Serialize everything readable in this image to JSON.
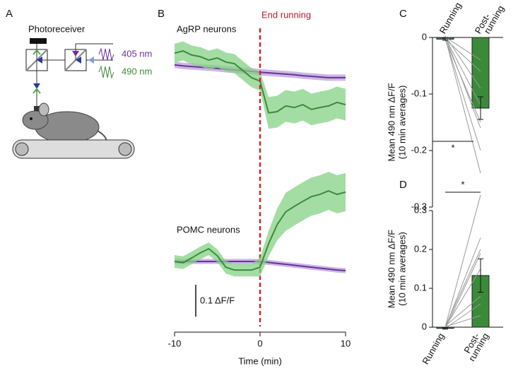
{
  "diagram": {
    "panel": "A",
    "title": "Photoreceiver",
    "wavelengths": [
      "405 nm",
      "490 nm"
    ]
  },
  "chart_data": [
    {
      "type": "line",
      "panel": "B",
      "title": "AgRP neurons",
      "annotation": {
        "x": 0,
        "text": "End running"
      },
      "x": [
        -10,
        -9,
        -8,
        -7,
        -6,
        -5,
        -4,
        -3,
        -2,
        -1,
        0,
        1,
        2,
        3,
        4,
        5,
        6,
        7,
        8,
        9,
        10
      ],
      "xlim": [
        -10,
        10
      ],
      "ylim": [
        -0.25,
        0.1
      ],
      "series": [
        {
          "name": "405 nm",
          "color": "#6b2fa0",
          "band_color": "#b9a0d8",
          "values": [
            0.007,
            0.004,
            0.002,
            0,
            -0.002,
            -0.004,
            -0.007,
            -0.009,
            -0.011,
            -0.013,
            -0.016,
            -0.018,
            -0.02,
            -0.022,
            -0.024,
            -0.027,
            -0.029,
            -0.031,
            -0.033,
            -0.033,
            -0.033
          ],
          "errors": [
            0.01,
            0.01,
            0.01,
            0.01,
            0.01,
            0.01,
            0.01,
            0.01,
            0.01,
            0.01,
            0.01,
            0.01,
            0.01,
            0.01,
            0.01,
            0.01,
            0.01,
            0.01,
            0.01,
            0.01,
            0.01
          ]
        },
        {
          "name": "490 nm",
          "color": "#3b8b3b",
          "band_color": "#86d286",
          "values": [
            0.044,
            0.051,
            0.038,
            0.033,
            0.022,
            0.029,
            0.016,
            0.011,
            -0.011,
            -0.033,
            -0.044,
            -0.144,
            -0.14,
            -0.122,
            -0.127,
            -0.118,
            -0.133,
            -0.127,
            -0.122,
            -0.111,
            -0.118
          ],
          "errors": [
            0.03,
            0.03,
            0.03,
            0.03,
            0.03,
            0.03,
            0.03,
            0.03,
            0.03,
            0.03,
            0.03,
            0.05,
            0.05,
            0.05,
            0.05,
            0.05,
            0.05,
            0.05,
            0.05,
            0.05,
            0.05
          ]
        }
      ]
    },
    {
      "type": "line",
      "title": "POMC neurons",
      "xlabel": "Time (min)",
      "scale_bar": {
        "value": 0.1,
        "label": "0.1 ΔF/F"
      },
      "x": [
        -10,
        -9,
        -8,
        -7,
        -6,
        -5,
        -4,
        -3,
        -2,
        -1,
        0,
        1,
        2,
        3,
        4,
        5,
        6,
        7,
        8,
        9,
        10
      ],
      "xlim": [
        -10,
        10
      ],
      "xticks": [
        -10,
        0,
        10
      ],
      "ylim": [
        -0.18,
        0.29
      ],
      "series": [
        {
          "name": "405 nm",
          "color": "#6b2fa0",
          "band_color": "#b9a0d8",
          "values": [
            0,
            0,
            0,
            0,
            0,
            0,
            0,
            0,
            0,
            0,
            0,
            -0.003,
            -0.006,
            -0.009,
            -0.012,
            -0.015,
            -0.018,
            -0.021,
            -0.024,
            -0.027,
            -0.029
          ],
          "errors": [
            0.008,
            0.008,
            0.008,
            0.008,
            0.008,
            0.008,
            0.008,
            0.008,
            0.008,
            0.008,
            0.008,
            0.008,
            0.008,
            0.008,
            0.008,
            0.008,
            0.008,
            0.008,
            0.008,
            0.008,
            0.008
          ]
        },
        {
          "name": "490 nm",
          "color": "#3b8b3b",
          "band_color": "#86d286",
          "values": [
            0,
            -0.004,
            0.011,
            0.027,
            0.04,
            0.018,
            -0.018,
            -0.027,
            -0.027,
            -0.027,
            -0.018,
            0.056,
            0.116,
            0.156,
            0.173,
            0.189,
            0.204,
            0.211,
            0.222,
            0.211,
            0.218
          ],
          "errors": [
            0.02,
            0.02,
            0.02,
            0.02,
            0.02,
            0.02,
            0.02,
            0.02,
            0.02,
            0.02,
            0.03,
            0.04,
            0.05,
            0.06,
            0.06,
            0.06,
            0.06,
            0.06,
            0.06,
            0.06,
            0.06
          ]
        }
      ]
    },
    {
      "type": "bar",
      "panel": "C",
      "ylabel": [
        "Mean 490 nm ΔF/F",
        "(10 min averages)"
      ],
      "categories": [
        "Running",
        [
          "Post-",
          "running"
        ]
      ],
      "values": [
        -0.003,
        -0.125
      ],
      "errors": [
        0.002,
        0.02
      ],
      "color": "#3a8a3a",
      "paired_values": [
        [
          0,
          -0.24
        ],
        [
          -0.002,
          -0.2
        ],
        [
          0.002,
          -0.16
        ],
        [
          -0.004,
          -0.15
        ],
        [
          0,
          -0.12
        ],
        [
          0.003,
          -0.09
        ],
        [
          -0.003,
          -0.06
        ],
        [
          0.001,
          -0.04
        ]
      ],
      "ylim": [
        -0.3,
        0
      ],
      "yticks": [
        0,
        -0.1,
        -0.2,
        -0.3
      ],
      "significance": "*"
    },
    {
      "type": "bar",
      "panel": "D",
      "ylabel": [
        "Mean 490 nm ΔF/F",
        "(10 min averages)"
      ],
      "categories": [
        "Running",
        [
          "Post-",
          "running"
        ]
      ],
      "values": [
        -0.003,
        0.133
      ],
      "errors": [
        0.002,
        0.043
      ],
      "color": "#3a8a3a",
      "paired_values": [
        [
          0,
          0.34
        ],
        [
          -0.002,
          0.23
        ],
        [
          0.002,
          0.2
        ],
        [
          -0.004,
          0.19
        ],
        [
          0,
          0.15
        ],
        [
          0.003,
          0.08
        ],
        [
          -0.003,
          0.06
        ],
        [
          0.001,
          0.03
        ]
      ],
      "ylim": [
        0,
        0.3
      ],
      "yticks": [
        0,
        0.1,
        0.2,
        0.3
      ],
      "significance": "*"
    }
  ]
}
